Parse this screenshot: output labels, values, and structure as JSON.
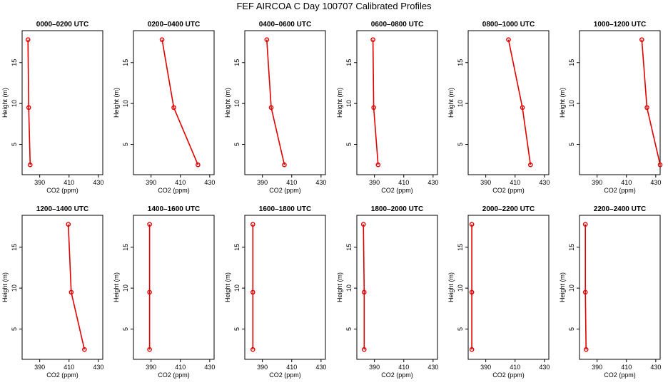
{
  "title": "FEF AIRCOA C  Day 100707  Calibrated Profiles",
  "chart_data": {
    "type": "line",
    "xlabel": "CO2 (ppm)",
    "ylabel": "Height (m)",
    "x_ticks": [
      390,
      410,
      430
    ],
    "y_ticks": [
      5,
      10,
      15
    ],
    "line_color": "#e00000",
    "panels": [
      {
        "title": "0000–0200 UTC",
        "xlim": [
          378,
          433
        ],
        "points": [
          {
            "x": 383.5,
            "y": 2.5
          },
          {
            "x": 382.5,
            "y": 9.5
          },
          {
            "x": 382.0,
            "y": 17.8
          }
        ]
      },
      {
        "title": "0200–0400 UTC",
        "xlim": [
          378,
          433
        ],
        "points": [
          {
            "x": 422.0,
            "y": 2.5
          },
          {
            "x": 405.5,
            "y": 9.5
          },
          {
            "x": 397.5,
            "y": 17.8
          }
        ]
      },
      {
        "title": "0400–0600 UTC",
        "xlim": [
          378,
          433
        ],
        "points": [
          {
            "x": 405.0,
            "y": 2.5
          },
          {
            "x": 396.0,
            "y": 9.5
          },
          {
            "x": 393.0,
            "y": 17.8
          }
        ]
      },
      {
        "title": "0600–0800 UTC",
        "xlim": [
          378,
          433
        ],
        "points": [
          {
            "x": 392.5,
            "y": 2.5
          },
          {
            "x": 389.5,
            "y": 9.5
          },
          {
            "x": 389.0,
            "y": 17.8
          }
        ]
      },
      {
        "title": "0800–1000 UTC",
        "xlim": [
          378,
          433
        ],
        "points": [
          {
            "x": 420.5,
            "y": 2.5
          },
          {
            "x": 415.0,
            "y": 9.5
          },
          {
            "x": 405.5,
            "y": 17.8
          }
        ]
      },
      {
        "title": "1000–1200 UTC",
        "xlim": [
          378,
          433
        ],
        "points": [
          {
            "x": 433.0,
            "y": 2.5
          },
          {
            "x": 424.0,
            "y": 9.5
          },
          {
            "x": 420.5,
            "y": 17.8
          }
        ]
      },
      {
        "title": "1200–1400 UTC",
        "xlim": [
          378,
          433
        ],
        "points": [
          {
            "x": 420.5,
            "y": 2.5
          },
          {
            "x": 411.5,
            "y": 9.5
          },
          {
            "x": 409.5,
            "y": 17.8
          }
        ]
      },
      {
        "title": "1400–1600 UTC",
        "xlim": [
          378,
          433
        ],
        "points": [
          {
            "x": 389.0,
            "y": 2.5
          },
          {
            "x": 389.0,
            "y": 9.5
          },
          {
            "x": 389.0,
            "y": 17.8
          }
        ]
      },
      {
        "title": "1600–1800 UTC",
        "xlim": [
          378,
          433
        ],
        "points": [
          {
            "x": 383.5,
            "y": 2.5
          },
          {
            "x": 383.5,
            "y": 9.5
          },
          {
            "x": 383.5,
            "y": 17.8
          }
        ]
      },
      {
        "title": "1800–2000 UTC",
        "xlim": [
          378,
          433
        ],
        "points": [
          {
            "x": 383.0,
            "y": 2.5
          },
          {
            "x": 383.0,
            "y": 9.5
          },
          {
            "x": 382.5,
            "y": 17.8
          }
        ]
      },
      {
        "title": "2000–2200 UTC",
        "xlim": [
          378,
          433
        ],
        "points": [
          {
            "x": 380.5,
            "y": 2.5
          },
          {
            "x": 380.5,
            "y": 9.5
          },
          {
            "x": 380.5,
            "y": 17.8
          }
        ]
      },
      {
        "title": "2200–2400 UTC",
        "xlim": [
          378,
          433
        ],
        "points": [
          {
            "x": 382.5,
            "y": 2.5
          },
          {
            "x": 382.0,
            "y": 9.5
          },
          {
            "x": 382.0,
            "y": 17.8
          }
        ]
      }
    ]
  }
}
